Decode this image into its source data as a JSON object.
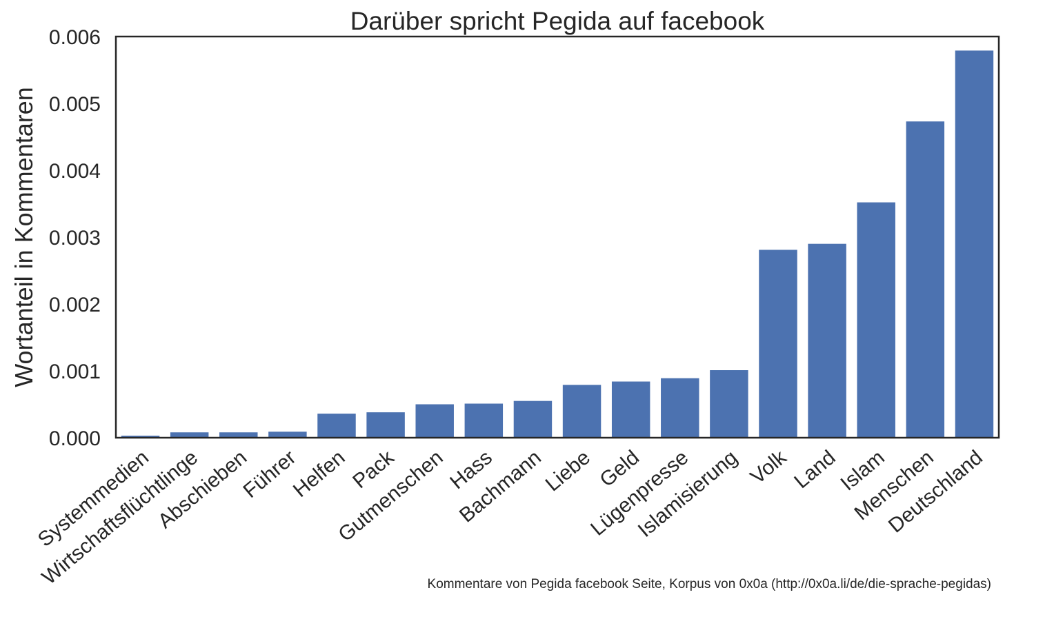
{
  "chart_data": {
    "type": "bar",
    "title": "Darüber spricht Pegida auf facebook",
    "ylabel": "Wortanteil in Kommentaren",
    "xlabel": "",
    "ylim": [
      0,
      0.006
    ],
    "yticks": [
      "0.000",
      "0.001",
      "0.002",
      "0.003",
      "0.004",
      "0.005",
      "0.006"
    ],
    "categories": [
      "Systemmedien",
      "Wirtschaftsflüchtlinge",
      "Abschieben",
      "Führer",
      "Helfen",
      "Pack",
      "Gutmenschen",
      "Hass",
      "Bachmann",
      "Liebe",
      "Geld",
      "Lügenpresse",
      "Islamisierung",
      "Volk",
      "Land",
      "Islam",
      "Menschen",
      "Deutschland"
    ],
    "values": [
      3e-05,
      8e-05,
      8e-05,
      9e-05,
      0.00036,
      0.00038,
      0.0005,
      0.00051,
      0.00055,
      0.00079,
      0.00084,
      0.00089,
      0.00101,
      0.00281,
      0.0029,
      0.00352,
      0.00473,
      0.00579
    ],
    "bar_color": "#4c72b0",
    "grid": false,
    "source_note": "Kommentare von Pegida facebook Seite, Korpus von 0x0a (http://0x0a.li/de/die-sprache-pegidas)"
  }
}
